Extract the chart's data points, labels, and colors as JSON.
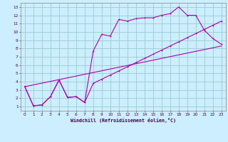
{
  "bg_color": "#cceeff",
  "grid_color": "#99cccc",
  "line_color": "#aa00aa",
  "xlabel": "Windchill (Refroidissement éolien,°C)",
  "xlim": [
    -0.5,
    23.5
  ],
  "ylim": [
    0.5,
    13.5
  ],
  "xticks": [
    0,
    1,
    2,
    3,
    4,
    5,
    6,
    7,
    8,
    9,
    10,
    11,
    12,
    13,
    14,
    15,
    16,
    17,
    18,
    19,
    20,
    21,
    22,
    23
  ],
  "yticks": [
    1,
    2,
    3,
    4,
    5,
    6,
    7,
    8,
    9,
    10,
    11,
    12,
    13
  ],
  "line1_x": [
    0,
    1,
    2,
    3,
    4,
    5,
    6,
    7,
    8,
    9,
    10,
    11,
    12,
    13,
    14,
    15,
    16,
    17,
    18,
    19,
    20,
    21,
    22,
    23
  ],
  "line1_y": [
    3.4,
    1.1,
    1.2,
    2.2,
    4.2,
    2.1,
    2.2,
    1.5,
    7.7,
    9.7,
    9.5,
    11.5,
    11.3,
    11.6,
    11.7,
    11.7,
    12.0,
    12.2,
    13.0,
    12.0,
    12.0,
    10.2,
    9.2,
    8.5
  ],
  "line2_x": [
    0,
    1,
    2,
    3,
    4,
    5,
    6,
    7,
    8,
    9,
    10,
    11,
    12,
    13,
    14,
    15,
    16,
    17,
    18,
    19,
    20,
    21,
    22,
    23
  ],
  "line2_y": [
    3.4,
    1.1,
    1.2,
    2.2,
    4.2,
    2.1,
    2.2,
    1.5,
    3.8,
    4.3,
    4.8,
    5.3,
    5.8,
    6.3,
    6.8,
    7.3,
    7.8,
    8.3,
    8.8,
    9.3,
    9.8,
    10.3,
    10.8,
    11.3
  ],
  "line3_x": [
    0,
    23
  ],
  "line3_y": [
    3.4,
    8.3
  ]
}
